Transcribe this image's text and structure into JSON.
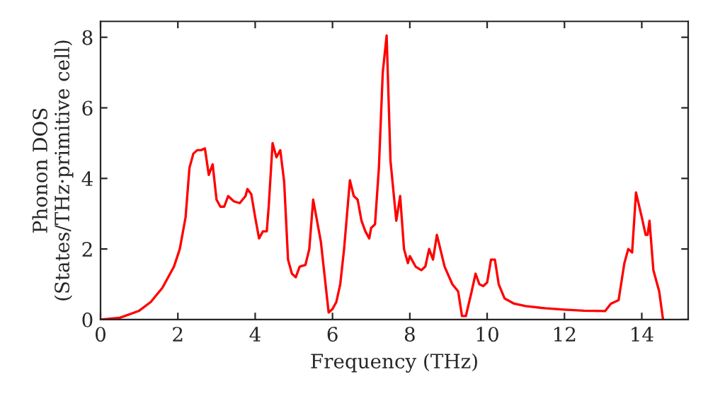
{
  "chart_data": {
    "type": "line",
    "xlabel": "Frequency (THz)",
    "ylabel": "Phonon DOS\n(States/THz·primitive cell)",
    "xlim": [
      0,
      15.2
    ],
    "ylim": [
      0,
      8.45
    ],
    "xticks": [
      0,
      2,
      4,
      6,
      8,
      10,
      12,
      14
    ],
    "yticks": [
      0,
      2,
      4,
      6,
      8
    ],
    "grid": false,
    "legend": false,
    "series": [
      {
        "color": "#ff0000",
        "x": [
          0,
          0.5,
          1,
          1.3,
          1.6,
          1.9,
          2.05,
          2.2,
          2.3,
          2.4,
          2.5,
          2.6,
          2.7,
          2.8,
          2.9,
          3.0,
          3.1,
          3.2,
          3.3,
          3.45,
          3.6,
          3.75,
          3.8,
          3.9,
          4.0,
          4.1,
          4.2,
          4.3,
          4.35,
          4.45,
          4.55,
          4.65,
          4.75,
          4.85,
          4.95,
          5.05,
          5.15,
          5.3,
          5.4,
          5.5,
          5.6,
          5.7,
          5.8,
          5.9,
          6.0,
          6.1,
          6.2,
          6.3,
          6.45,
          6.55,
          6.65,
          6.75,
          6.85,
          6.95,
          7.0,
          7.1,
          7.2,
          7.3,
          7.4,
          7.5,
          7.65,
          7.75,
          7.85,
          7.95,
          8.0,
          8.15,
          8.3,
          8.4,
          8.5,
          8.6,
          8.7,
          8.9,
          9.1,
          9.25,
          9.35,
          9.45,
          9.6,
          9.7,
          9.8,
          9.9,
          10.0,
          10.1,
          10.2,
          10.3,
          10.45,
          10.7,
          11.0,
          11.5,
          12.0,
          12.5,
          13.05,
          13.2,
          13.3,
          13.4,
          13.55,
          13.65,
          13.75,
          13.85,
          14.0,
          14.1,
          14.15,
          14.2,
          14.3,
          14.45,
          14.55
        ],
        "values": [
          0,
          0.05,
          0.25,
          0.5,
          0.9,
          1.5,
          2.0,
          2.9,
          4.3,
          4.7,
          4.8,
          4.8,
          4.85,
          4.1,
          4.4,
          3.4,
          3.2,
          3.2,
          3.5,
          3.35,
          3.3,
          3.5,
          3.7,
          3.55,
          2.9,
          2.3,
          2.5,
          2.5,
          3.2,
          5.0,
          4.6,
          4.8,
          3.9,
          1.7,
          1.3,
          1.2,
          1.5,
          1.55,
          2.0,
          3.4,
          2.8,
          2.2,
          1.2,
          0.2,
          0.3,
          0.5,
          1.0,
          2.0,
          3.95,
          3.5,
          3.4,
          2.8,
          2.5,
          2.3,
          2.6,
          2.7,
          4.3,
          7.0,
          8.05,
          4.5,
          2.8,
          3.5,
          2.0,
          1.6,
          1.8,
          1.5,
          1.4,
          1.5,
          2.0,
          1.7,
          2.4,
          1.5,
          1.0,
          0.8,
          0.1,
          0.1,
          0.8,
          1.3,
          1.0,
          0.95,
          1.05,
          1.7,
          1.7,
          1.0,
          0.6,
          0.45,
          0.38,
          0.32,
          0.28,
          0.25,
          0.24,
          0.45,
          0.5,
          0.55,
          1.6,
          2.0,
          1.9,
          3.6,
          2.9,
          2.4,
          2.4,
          2.8,
          1.4,
          0.8,
          0
        ]
      }
    ]
  }
}
